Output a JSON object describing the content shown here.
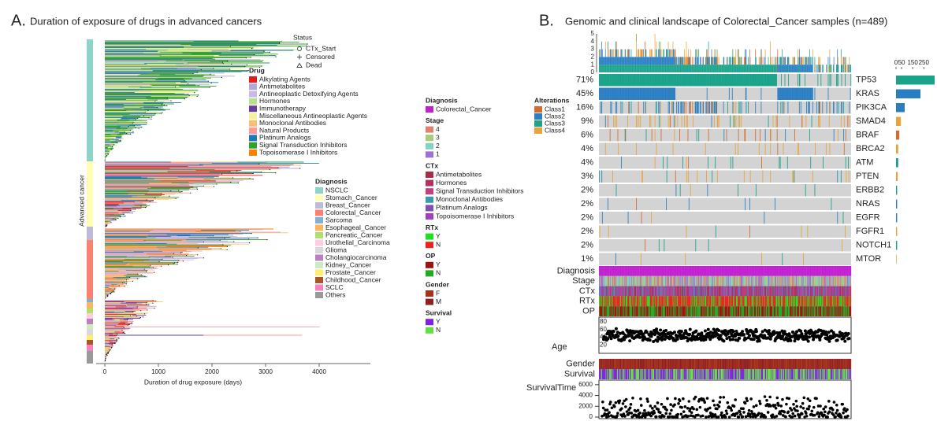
{
  "panel_a": {
    "letter": "A.",
    "title": "Duration of exposure of drugs in advanced cancers",
    "y_label": "Advanced cancer",
    "x_label": "Duration of drug exposure (days)",
    "xticks": [
      0,
      1000,
      2000,
      3000,
      4000
    ],
    "status_legend": {
      "title": "Status",
      "items": [
        "CTx_Start",
        "Censored",
        "Dead"
      ]
    },
    "drug_legend": {
      "title": "Drug",
      "items": [
        {
          "name": "Alkylating Agents",
          "color": "#e41a1c"
        },
        {
          "name": "Antimetabolites",
          "color": "#b0a8d8"
        },
        {
          "name": "Antineoplastic Detoxifying Agents",
          "color": "#cdb8e4"
        },
        {
          "name": "Hormones",
          "color": "#b8e08a"
        },
        {
          "name": "Immunotherapy",
          "color": "#6a3d9a"
        },
        {
          "name": "Miscellaneous Antineoplastic Agents",
          "color": "#f7f29a"
        },
        {
          "name": "Monoclonal Antibodies",
          "color": "#fdbf6f"
        },
        {
          "name": "Natural Products",
          "color": "#fb9a99"
        },
        {
          "name": "Platinum Analogs",
          "color": "#1f78b4"
        },
        {
          "name": "Signal Transduction Inhibitors",
          "color": "#33a02c"
        },
        {
          "name": "Topoisomerase I Inhibitors",
          "color": "#ff7f00"
        }
      ]
    },
    "diagnosis_legend": {
      "title": "Diagnosis",
      "items": [
        {
          "name": "NSCLC",
          "color": "#8dd3c7"
        },
        {
          "name": "Stomach_Cancer",
          "color": "#ffffb3"
        },
        {
          "name": "Breast_Cancer",
          "color": "#bebada"
        },
        {
          "name": "Colorectal_Cancer",
          "color": "#fb8072"
        },
        {
          "name": "Sarcoma",
          "color": "#80b1d3"
        },
        {
          "name": "Esophageal_Cancer",
          "color": "#fdb462"
        },
        {
          "name": "Pancreatic_Cancer",
          "color": "#b3de69"
        },
        {
          "name": "Urothelial_Carcinoma",
          "color": "#fccde5"
        },
        {
          "name": "Glioma",
          "color": "#d9d9d9"
        },
        {
          "name": "Cholangiocarcinoma",
          "color": "#bc80bd"
        },
        {
          "name": "Kidney_Cancer",
          "color": "#ccebc5"
        },
        {
          "name": "Prostate_Cancer",
          "color": "#ffed6f"
        },
        {
          "name": "Childhood_Cancer",
          "color": "#a65628"
        },
        {
          "name": "SCLC",
          "color": "#f781bf"
        },
        {
          "name": "Others",
          "color": "#999999"
        }
      ]
    }
  },
  "clinical_legends": [
    {
      "title": "Diagnosis",
      "items": [
        {
          "name": "Colorectal_Cancer",
          "color": "#c020d0"
        }
      ]
    },
    {
      "title": "Stage",
      "items": [
        {
          "name": "4",
          "color": "#e08070"
        },
        {
          "name": "3",
          "color": "#a8cc78"
        },
        {
          "name": "2",
          "color": "#80d4c0"
        },
        {
          "name": "1",
          "color": "#a070d0"
        }
      ]
    },
    {
      "title": "CTx",
      "items": [
        {
          "name": "Antimetabolites",
          "color": "#a0304a"
        },
        {
          "name": "Hormones",
          "color": "#b03060"
        },
        {
          "name": "Signal Transduction Inhibitors",
          "color": "#c04080"
        },
        {
          "name": "Monoclonal Antibodies",
          "color": "#3a9ab0"
        },
        {
          "name": "Platinum Analogs",
          "color": "#8050b0"
        },
        {
          "name": "Topoisomerase I Inhibitors",
          "color": "#a040c0"
        }
      ]
    },
    {
      "title": "RTx",
      "items": [
        {
          "name": "Y",
          "color": "#22dd22"
        },
        {
          "name": "N",
          "color": "#ee2020"
        }
      ]
    },
    {
      "title": "OP",
      "items": [
        {
          "name": "Y",
          "color": "#a01010"
        },
        {
          "name": "N",
          "color": "#22aa22"
        }
      ]
    },
    {
      "title": "Gender",
      "items": [
        {
          "name": "F",
          "color": "#a83018"
        },
        {
          "name": "M",
          "color": "#902020"
        }
      ]
    },
    {
      "title": "Survival",
      "items": [
        {
          "name": "Y",
          "color": "#8020e0"
        },
        {
          "name": "N",
          "color": "#66dd44"
        }
      ]
    }
  ],
  "panel_b": {
    "letter": "B.",
    "title": "Genomic and clinical landscape of Colorectal_Cancer samples (n=489)",
    "top_yticks": [
      0,
      1,
      2,
      3,
      4,
      5
    ],
    "alterations_legend": {
      "title": "Alterations",
      "items": [
        {
          "name": "Class1",
          "color": "#d9692a"
        },
        {
          "name": "Class2",
          "color": "#2a7fc4"
        },
        {
          "name": "Class3",
          "color": "#19a38a"
        },
        {
          "name": "Class4",
          "color": "#e8a43a"
        }
      ]
    },
    "genes": [
      {
        "name": "TP53",
        "percent": "71%",
        "count": 347,
        "color": "#19a38a"
      },
      {
        "name": "KRAS",
        "percent": "45%",
        "count": 220,
        "color": "#2a7fc4"
      },
      {
        "name": "PIK3CA",
        "percent": "16%",
        "count": 78,
        "color": "#2a7fc4"
      },
      {
        "name": "SMAD4",
        "percent": "9%",
        "count": 44,
        "color": "#e8a43a"
      },
      {
        "name": "BRAF",
        "percent": "6%",
        "count": 29,
        "color": "#d9692a"
      },
      {
        "name": "BRCA2",
        "percent": "4%",
        "count": 20,
        "color": "#e8a43a"
      },
      {
        "name": "ATM",
        "percent": "4%",
        "count": 20,
        "color": "#19a38a"
      },
      {
        "name": "PTEN",
        "percent": "3%",
        "count": 15,
        "color": "#e8a43a"
      },
      {
        "name": "ERBB2",
        "percent": "2%",
        "count": 10,
        "color": "#19a38a"
      },
      {
        "name": "NRAS",
        "percent": "2%",
        "count": 10,
        "color": "#2a7fc4"
      },
      {
        "name": "EGFR",
        "percent": "2%",
        "count": 10,
        "color": "#2a7fc4"
      },
      {
        "name": "FGFR1",
        "percent": "2%",
        "count": 10,
        "color": "#e8a43a"
      },
      {
        "name": "NOTCH1",
        "percent": "2%",
        "count": 10,
        "color": "#19a38a"
      },
      {
        "name": "MTOR",
        "percent": "1%",
        "count": 5,
        "color": "#e8a43a"
      }
    ],
    "count_xlim": [
      0,
      340
    ],
    "count_xticks": [
      0,
      50,
      150,
      250
    ],
    "tracks": [
      "Diagnosis",
      "Stage",
      "CTx",
      "RTx",
      "OP"
    ],
    "age_label": "Age",
    "age_ylim": [
      0,
      90
    ],
    "age_yticks": [
      20,
      40,
      60,
      80
    ],
    "tracks2": [
      "Gender",
      "Survival"
    ],
    "survival_label": "SurvivalTime",
    "survival_ylim": [
      0,
      7000
    ],
    "survival_yticks": [
      0,
      2000,
      4000,
      6000
    ]
  }
}
